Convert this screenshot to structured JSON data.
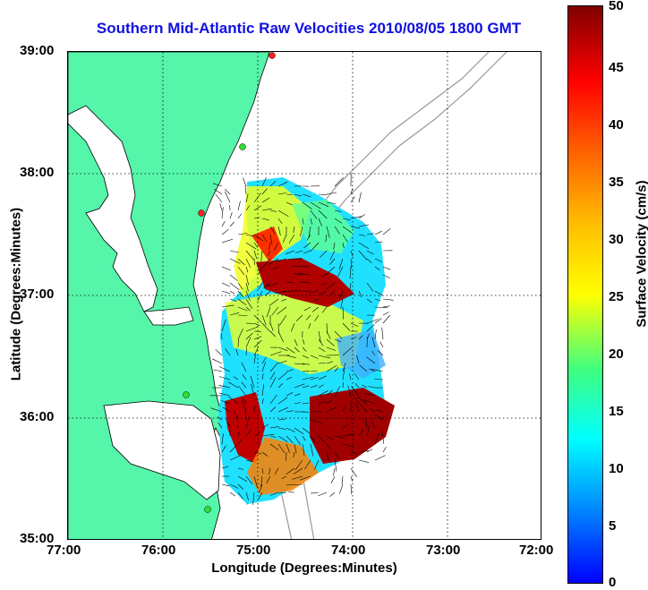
{
  "title": "Southern Mid-Atlantic Raw Velocities 2010/08/05 1800 GMT",
  "x_axis": {
    "label": "Longitude (Degrees:Minutes)",
    "ticks": [
      "77:00",
      "76:00",
      "75:00",
      "74:00",
      "73:00",
      "72:00"
    ]
  },
  "y_axis": {
    "label": "Latitude (Degrees:Minutes)",
    "ticks": [
      "39:00",
      "38:00",
      "37:00",
      "36:00",
      "35:00"
    ]
  },
  "colorbar": {
    "label": "Surface Velocity (cm/s)",
    "ticks": [
      "0",
      "5",
      "10",
      "15",
      "20",
      "25",
      "30",
      "35",
      "40",
      "45",
      "50"
    ],
    "min": 0,
    "max": 50
  },
  "colors": {
    "land": "#55f5aa",
    "title": "#1010e0",
    "station": "#30e030",
    "station_alt": "#ff2020"
  }
}
